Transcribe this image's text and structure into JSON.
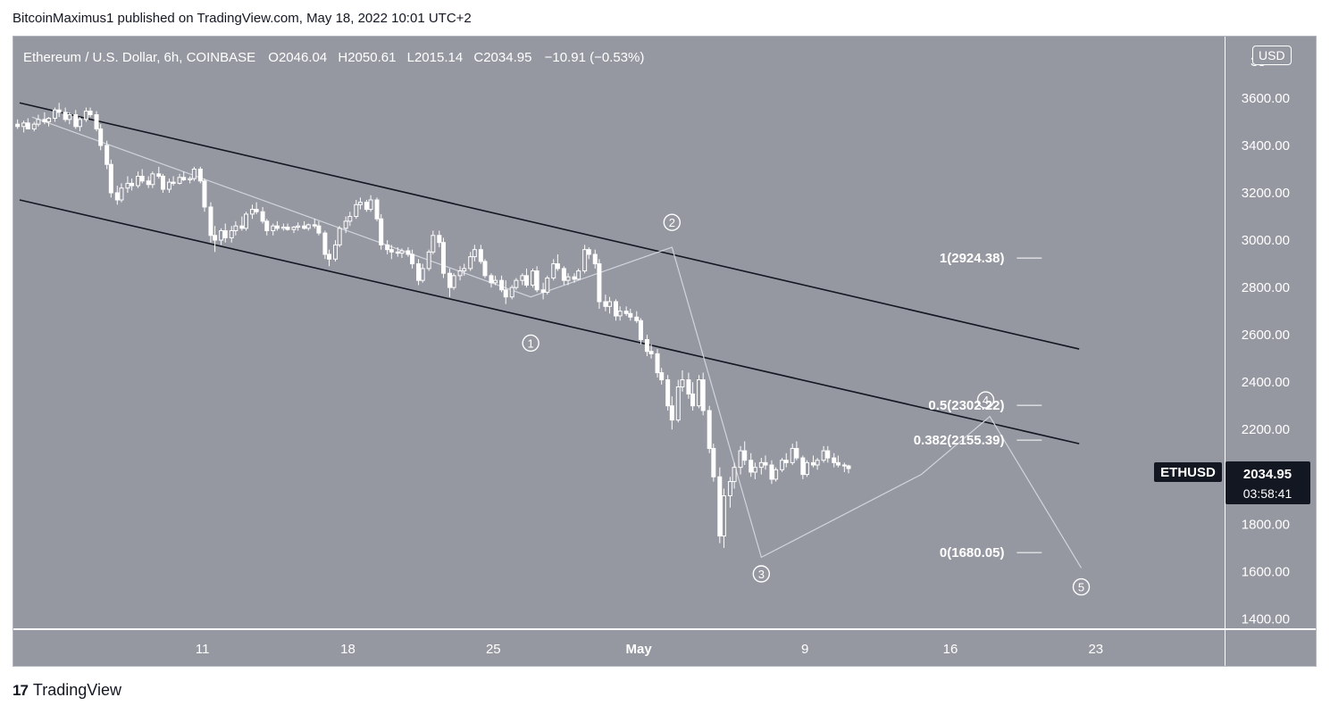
{
  "publisher_line": "BitcoinMaximus1 published on TradingView.com, May 18, 2022 10:01 UTC+2",
  "footer": {
    "logo_mark": "17",
    "brand": "TradingView"
  },
  "currency_badge": "USD",
  "colors": {
    "pane_bg": "#9598a1",
    "candle": "#ffffff",
    "channel": "#131722",
    "wave_line": "#d1d4dc",
    "text": "#ffffff",
    "last_price_bg": "#131722"
  },
  "chart_data": {
    "type": "candlestick",
    "symbol_title": "Ethereum / U.S. Dollar, 6h, COINBASE",
    "ohlc": {
      "o_label": "O",
      "o": "2046.04",
      "h_label": "H",
      "h": "2050.61",
      "l_label": "L",
      "l": "2015.14",
      "c_label": "C",
      "c": "2034.95",
      "change": "−10.91 (−0.53%)"
    },
    "last_price": {
      "symbol": "ETHUSD",
      "price": "2034.95",
      "countdown": "03:58:41"
    },
    "y_axis": {
      "ticks": [
        "3600.00",
        "3400.00",
        "3200.00",
        "3000.00",
        "2800.00",
        "2600.00",
        "2400.00",
        "2200.00",
        "1800.00",
        "1600.00",
        "1400.00"
      ],
      "top_partial": "38",
      "range": [
        1360,
        3860
      ]
    },
    "x_axis": {
      "ticks": [
        {
          "label": "11",
          "day": 11
        },
        {
          "label": "18",
          "day": 18
        },
        {
          "label": "25",
          "day": 25
        },
        {
          "label": "May",
          "day": 32
        },
        {
          "label": "9",
          "day": 40
        },
        {
          "label": "16",
          "day": 47
        },
        {
          "label": "23",
          "day": 54
        }
      ],
      "range_days": [
        1.9,
        60.2
      ],
      "note": "day index counted from April 0"
    },
    "candles": [
      [
        2.1,
        3490,
        3510,
        3470,
        3480
      ],
      [
        2.4,
        3480,
        3505,
        3455,
        3495
      ],
      [
        2.6,
        3495,
        3515,
        3470,
        3470
      ],
      [
        2.9,
        3470,
        3500,
        3460,
        3490
      ],
      [
        3.1,
        3490,
        3530,
        3480,
        3510
      ],
      [
        3.4,
        3510,
        3540,
        3490,
        3500
      ],
      [
        3.6,
        3500,
        3520,
        3480,
        3515
      ],
      [
        3.9,
        3515,
        3560,
        3500,
        3550
      ],
      [
        4.1,
        3550,
        3580,
        3520,
        3540
      ],
      [
        4.4,
        3540,
        3560,
        3500,
        3510
      ],
      [
        4.6,
        3510,
        3540,
        3490,
        3530
      ],
      [
        4.9,
        3530,
        3550,
        3470,
        3480
      ],
      [
        5.1,
        3480,
        3520,
        3460,
        3510
      ],
      [
        5.4,
        3510,
        3560,
        3500,
        3545
      ],
      [
        5.6,
        3545,
        3560,
        3520,
        3530
      ],
      [
        5.9,
        3530,
        3545,
        3460,
        3470
      ],
      [
        6.1,
        3470,
        3490,
        3380,
        3400
      ],
      [
        6.4,
        3400,
        3420,
        3300,
        3320
      ],
      [
        6.6,
        3320,
        3340,
        3180,
        3200
      ],
      [
        6.9,
        3200,
        3230,
        3150,
        3170
      ],
      [
        7.1,
        3170,
        3240,
        3160,
        3220
      ],
      [
        7.4,
        3220,
        3270,
        3200,
        3240
      ],
      [
        7.6,
        3240,
        3260,
        3210,
        3230
      ],
      [
        7.9,
        3230,
        3290,
        3220,
        3270
      ],
      [
        8.1,
        3270,
        3300,
        3240,
        3250
      ],
      [
        8.4,
        3250,
        3270,
        3220,
        3235
      ],
      [
        8.6,
        3235,
        3290,
        3220,
        3280
      ],
      [
        8.9,
        3280,
        3310,
        3260,
        3270
      ],
      [
        9.1,
        3270,
        3280,
        3200,
        3215
      ],
      [
        9.4,
        3215,
        3260,
        3200,
        3245
      ],
      [
        9.6,
        3245,
        3270,
        3230,
        3240
      ],
      [
        9.9,
        3240,
        3280,
        3235,
        3265
      ],
      [
        10.1,
        3265,
        3290,
        3250,
        3255
      ],
      [
        10.4,
        3255,
        3270,
        3240,
        3260
      ],
      [
        10.6,
        3260,
        3310,
        3250,
        3300
      ],
      [
        10.9,
        3300,
        3310,
        3240,
        3250
      ],
      [
        11.1,
        3250,
        3260,
        3120,
        3140
      ],
      [
        11.4,
        3140,
        3160,
        2990,
        3020
      ],
      [
        11.6,
        3020,
        3060,
        2950,
        3000
      ],
      [
        11.9,
        3000,
        3050,
        2980,
        3040
      ],
      [
        12.1,
        3040,
        3070,
        2990,
        3010
      ],
      [
        12.4,
        3010,
        3060,
        2990,
        3040
      ],
      [
        12.6,
        3040,
        3080,
        3020,
        3060
      ],
      [
        12.9,
        3060,
        3100,
        3040,
        3050
      ],
      [
        13.1,
        3050,
        3120,
        3040,
        3110
      ],
      [
        13.4,
        3110,
        3150,
        3090,
        3130
      ],
      [
        13.6,
        3130,
        3160,
        3110,
        3120
      ],
      [
        13.9,
        3120,
        3140,
        3070,
        3080
      ],
      [
        14.1,
        3080,
        3090,
        3020,
        3040
      ],
      [
        14.4,
        3040,
        3070,
        3020,
        3060
      ],
      [
        14.6,
        3060,
        3080,
        3040,
        3050
      ],
      [
        14.9,
        3050,
        3070,
        3040,
        3055
      ],
      [
        15.1,
        3055,
        3070,
        3040,
        3045
      ],
      [
        15.4,
        3045,
        3060,
        3030,
        3055
      ],
      [
        15.6,
        3055,
        3075,
        3040,
        3060
      ],
      [
        15.9,
        3060,
        3080,
        3045,
        3050
      ],
      [
        16.1,
        3050,
        3070,
        3040,
        3065
      ],
      [
        16.4,
        3065,
        3090,
        3050,
        3060
      ],
      [
        16.6,
        3060,
        3080,
        3020,
        3030
      ],
      [
        16.9,
        3030,
        3040,
        2920,
        2940
      ],
      [
        17.1,
        2940,
        2960,
        2890,
        2920
      ],
      [
        17.4,
        2920,
        3000,
        2910,
        2980
      ],
      [
        17.6,
        2980,
        3060,
        2970,
        3050
      ],
      [
        17.9,
        3050,
        3100,
        3030,
        3080
      ],
      [
        18.1,
        3080,
        3120,
        3060,
        3100
      ],
      [
        18.4,
        3100,
        3170,
        3090,
        3150
      ],
      [
        18.6,
        3150,
        3180,
        3130,
        3160
      ],
      [
        18.9,
        3160,
        3170,
        3120,
        3130
      ],
      [
        19.1,
        3130,
        3190,
        3120,
        3170
      ],
      [
        19.4,
        3170,
        3180,
        3080,
        3090
      ],
      [
        19.6,
        3090,
        3110,
        2960,
        2980
      ],
      [
        19.9,
        2980,
        3000,
        2940,
        2960
      ],
      [
        20.1,
        2960,
        2980,
        2920,
        2950
      ],
      [
        20.4,
        2950,
        2970,
        2930,
        2945
      ],
      [
        20.6,
        2945,
        2965,
        2925,
        2955
      ],
      [
        20.9,
        2955,
        2970,
        2930,
        2940
      ],
      [
        21.1,
        2940,
        2960,
        2880,
        2900
      ],
      [
        21.4,
        2900,
        2920,
        2810,
        2830
      ],
      [
        21.6,
        2830,
        2900,
        2820,
        2880
      ],
      [
        21.9,
        2880,
        2960,
        2870,
        2950
      ],
      [
        22.1,
        2950,
        3040,
        2940,
        3020
      ],
      [
        22.4,
        3020,
        3040,
        2970,
        2990
      ],
      [
        22.6,
        2990,
        3010,
        2840,
        2860
      ],
      [
        22.9,
        2860,
        2880,
        2760,
        2800
      ],
      [
        23.1,
        2800,
        2860,
        2790,
        2850
      ],
      [
        23.4,
        2850,
        2890,
        2830,
        2870
      ],
      [
        23.6,
        2870,
        2900,
        2850,
        2880
      ],
      [
        23.9,
        2880,
        2950,
        2870,
        2930
      ],
      [
        24.1,
        2930,
        2980,
        2910,
        2960
      ],
      [
        24.4,
        2960,
        2980,
        2900,
        2910
      ],
      [
        24.6,
        2910,
        2920,
        2840,
        2850
      ],
      [
        24.9,
        2850,
        2860,
        2800,
        2820
      ],
      [
        25.1,
        2820,
        2850,
        2810,
        2830
      ],
      [
        25.4,
        2830,
        2850,
        2780,
        2790
      ],
      [
        25.6,
        2790,
        2830,
        2730,
        2760
      ],
      [
        25.9,
        2760,
        2810,
        2750,
        2800
      ],
      [
        26.1,
        2800,
        2840,
        2790,
        2830
      ],
      [
        26.4,
        2830,
        2860,
        2810,
        2850
      ],
      [
        26.6,
        2850,
        2880,
        2800,
        2810
      ],
      [
        26.9,
        2810,
        2880,
        2800,
        2870
      ],
      [
        27.1,
        2870,
        2890,
        2780,
        2790
      ],
      [
        27.4,
        2790,
        2820,
        2750,
        2780
      ],
      [
        27.6,
        2780,
        2850,
        2770,
        2840
      ],
      [
        27.9,
        2840,
        2920,
        2830,
        2900
      ],
      [
        28.1,
        2900,
        2940,
        2870,
        2880
      ],
      [
        28.4,
        2880,
        2890,
        2810,
        2830
      ],
      [
        28.6,
        2830,
        2860,
        2810,
        2845
      ],
      [
        28.9,
        2845,
        2860,
        2820,
        2835
      ],
      [
        29.1,
        2835,
        2880,
        2830,
        2870
      ],
      [
        29.4,
        2870,
        2980,
        2860,
        2960
      ],
      [
        29.6,
        2960,
        2970,
        2920,
        2940
      ],
      [
        29.9,
        2940,
        2960,
        2880,
        2900
      ],
      [
        30.1,
        2900,
        2920,
        2710,
        2740
      ],
      [
        30.4,
        2740,
        2770,
        2700,
        2720
      ],
      [
        30.6,
        2720,
        2760,
        2690,
        2740
      ],
      [
        30.9,
        2740,
        2750,
        2660,
        2680
      ],
      [
        31.1,
        2680,
        2720,
        2660,
        2700
      ],
      [
        31.4,
        2700,
        2720,
        2680,
        2690
      ],
      [
        31.6,
        2690,
        2710,
        2660,
        2675
      ],
      [
        31.9,
        2675,
        2700,
        2650,
        2660
      ],
      [
        32.1,
        2660,
        2670,
        2560,
        2580
      ],
      [
        32.4,
        2580,
        2600,
        2510,
        2530
      ],
      [
        32.6,
        2530,
        2560,
        2500,
        2520
      ],
      [
        32.9,
        2520,
        2540,
        2420,
        2440
      ],
      [
        33.1,
        2440,
        2460,
        2390,
        2410
      ],
      [
        33.4,
        2410,
        2430,
        2280,
        2300
      ],
      [
        33.6,
        2300,
        2340,
        2200,
        2240
      ],
      [
        33.9,
        2240,
        2410,
        2230,
        2380
      ],
      [
        34.1,
        2380,
        2450,
        2360,
        2410
      ],
      [
        34.4,
        2410,
        2440,
        2330,
        2350
      ],
      [
        34.6,
        2350,
        2400,
        2280,
        2300
      ],
      [
        34.9,
        2300,
        2430,
        2290,
        2410
      ],
      [
        35.1,
        2410,
        2440,
        2260,
        2280
      ],
      [
        35.4,
        2280,
        2300,
        2100,
        2120
      ],
      [
        35.6,
        2120,
        2140,
        1980,
        2000
      ],
      [
        35.9,
        2000,
        2040,
        1720,
        1750
      ],
      [
        36.1,
        1750,
        1950,
        1700,
        1920
      ],
      [
        36.4,
        1920,
        2000,
        1870,
        1980
      ],
      [
        36.6,
        1980,
        2060,
        1950,
        2040
      ],
      [
        36.9,
        2040,
        2130,
        2010,
        2110
      ],
      [
        37.1,
        2110,
        2150,
        2050,
        2070
      ],
      [
        37.4,
        2070,
        2100,
        2000,
        2020
      ],
      [
        37.6,
        2020,
        2060,
        1990,
        2040
      ],
      [
        37.9,
        2040,
        2080,
        2010,
        2060
      ],
      [
        38.1,
        2060,
        2090,
        2030,
        2050
      ],
      [
        38.4,
        2050,
        2070,
        1970,
        1990
      ],
      [
        38.6,
        1990,
        2040,
        1980,
        2030
      ],
      [
        38.9,
        2030,
        2080,
        2020,
        2070
      ],
      [
        39.1,
        2070,
        2100,
        2040,
        2060
      ],
      [
        39.4,
        2060,
        2140,
        2050,
        2120
      ],
      [
        39.6,
        2120,
        2150,
        2070,
        2080
      ],
      [
        39.9,
        2080,
        2090,
        1990,
        2010
      ],
      [
        40.1,
        2010,
        2070,
        2000,
        2060
      ],
      [
        40.4,
        2060,
        2090,
        2040,
        2050
      ],
      [
        40.6,
        2050,
        2080,
        2030,
        2070
      ],
      [
        40.9,
        2070,
        2130,
        2060,
        2110
      ],
      [
        41.1,
        2110,
        2130,
        2060,
        2080
      ],
      [
        41.4,
        2080,
        2100,
        2040,
        2060
      ],
      [
        41.6,
        2060,
        2090,
        2040,
        2050
      ],
      [
        41.9,
        2050,
        2060,
        2020,
        2046
      ],
      [
        42.1,
        2046,
        2051,
        2015,
        2035
      ]
    ],
    "channel_upper": [
      [
        2.2,
        3580
      ],
      [
        53.2,
        2540
      ]
    ],
    "channel_lower": [
      [
        2.2,
        3170
      ],
      [
        53.2,
        2140
      ]
    ],
    "wave_path": [
      [
        2.8,
        3520
      ],
      [
        26.8,
        2760
      ],
      [
        33.6,
        2970
      ],
      [
        37.9,
        1660
      ],
      [
        45.6,
        2010
      ],
      [
        48.9,
        2255
      ],
      [
        53.3,
        1615
      ]
    ],
    "wave_labels": [
      {
        "label": "1",
        "day": 26.8,
        "price": 2565
      },
      {
        "label": "2",
        "day": 33.6,
        "price": 3075
      },
      {
        "label": "3",
        "day": 37.9,
        "price": 1590
      },
      {
        "label": "4",
        "day": 48.7,
        "price": 2325
      },
      {
        "label": "5",
        "day": 53.3,
        "price": 1535
      }
    ],
    "fib_levels": [
      {
        "label": "1(2924.38)",
        "price": 2924.38
      },
      {
        "label": "0.5(2302.22)",
        "price": 2302.22
      },
      {
        "label": "0.382(2155.39)",
        "price": 2155.39
      },
      {
        "label": "0(1680.05)",
        "price": 1680.05
      }
    ]
  }
}
